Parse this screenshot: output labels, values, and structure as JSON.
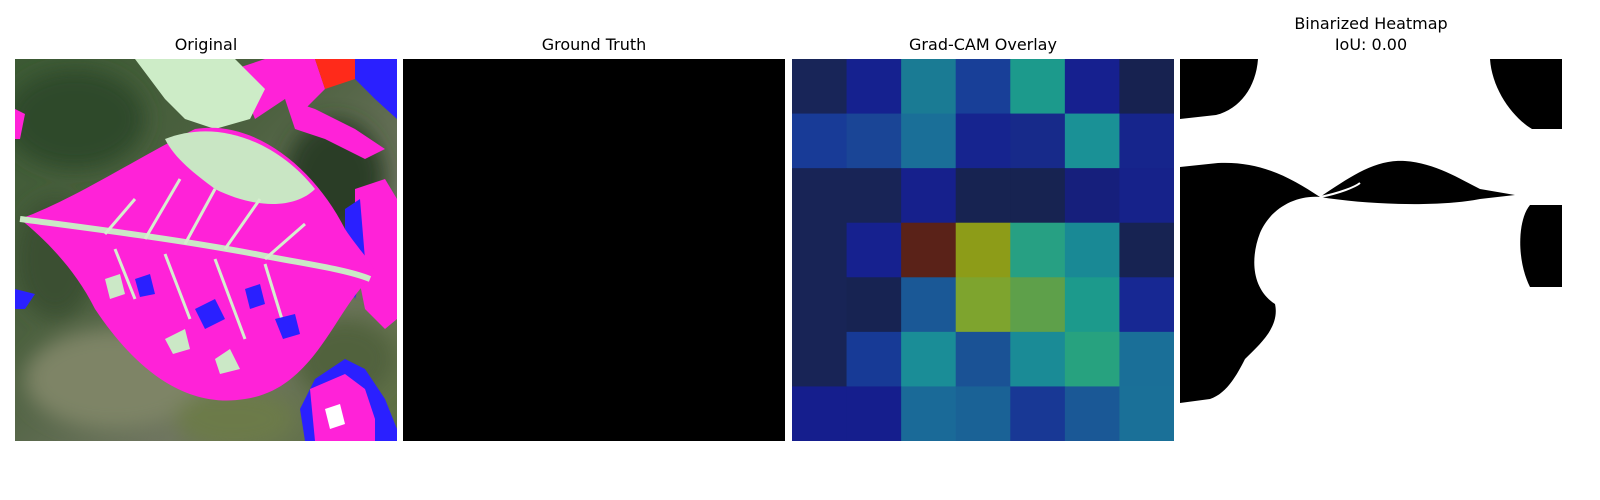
{
  "panels": {
    "original": {
      "title": "Original"
    },
    "ground_truth": {
      "title": "Ground Truth"
    },
    "gradcam": {
      "title": "Grad-CAM Overlay",
      "grid": [
        [
          "#182558",
          "#15218f",
          "#1a7b94",
          "#183f98",
          "#1c9a8c",
          "#16208f",
          "#172250"
        ],
        [
          "#183b97",
          "#1a4596",
          "#1a6f98",
          "#16248f",
          "#172a8a",
          "#1a9196",
          "#16258c"
        ],
        [
          "#182456",
          "#182456",
          "#16208c",
          "#172351",
          "#172351",
          "#161f7c",
          "#16228a"
        ],
        [
          "#182456",
          "#16218f",
          "#5a2218",
          "#8d9c18",
          "#27a083",
          "#198995",
          "#172352"
        ],
        [
          "#182456",
          "#172352",
          "#1a5896",
          "#7ea42e",
          "#5ea04a",
          "#1c9a8c",
          "#172893"
        ],
        [
          "#182456",
          "#173a96",
          "#1a8d97",
          "#1a5295",
          "#1a8b96",
          "#27a27f",
          "#1a6f98"
        ],
        [
          "#151e8d",
          "#151e8d",
          "#1a6a98",
          "#1a6296",
          "#183895",
          "#1a5896",
          "#1a7098"
        ]
      ]
    },
    "binarized": {
      "title": "Binarized Heatmap",
      "subtitle": "IoU: 0.00"
    }
  }
}
